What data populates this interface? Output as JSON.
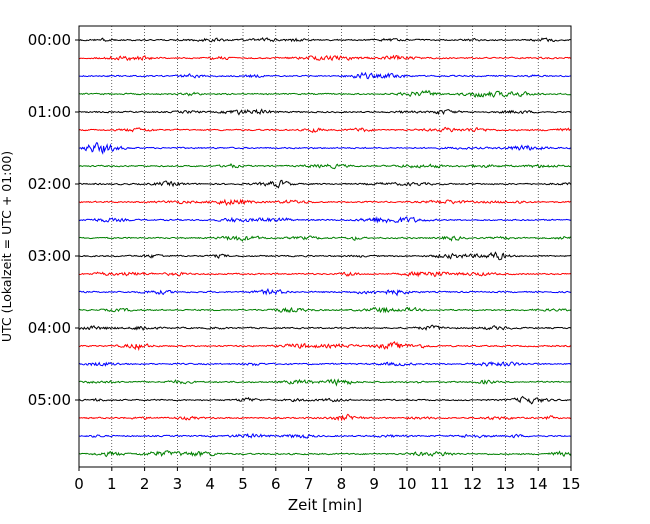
{
  "chart_data": {
    "type": "line",
    "title": "",
    "xlabel": "Zeit  [min]",
    "ylabel": "UTC (Lokalzeit = UTC + 01:00)",
    "xlim": [
      0,
      15
    ],
    "x_ticks": [
      "0",
      "1",
      "2",
      "3",
      "4",
      "5",
      "6",
      "7",
      "8",
      "9",
      "10",
      "11",
      "12",
      "13",
      "14",
      "15"
    ],
    "y_tick_labels": [
      "00:00",
      "01:00",
      "02:00",
      "03:00",
      "04:00",
      "05:00"
    ],
    "traces_per_hour": 4,
    "trace_count": 24,
    "trace_interval_minutes": 15,
    "trace_colors": [
      "#000000",
      "#ff0000",
      "#0000ff",
      "#008000"
    ],
    "grid": {
      "x": "dotted",
      "y": false
    },
    "legend": "none"
  }
}
